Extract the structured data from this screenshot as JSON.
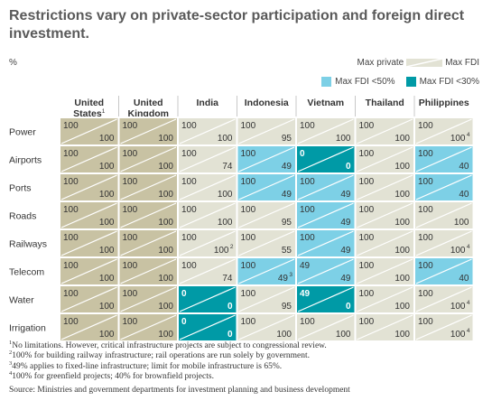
{
  "title": "Restrictions vary on private-sector participation and foreign direct investment.",
  "unit": "%",
  "legend": {
    "private_label": "Max private",
    "fdi_label": "Max FDI",
    "low_label": "Max FDI <50%",
    "very_low_label": "Max FDI <30%"
  },
  "colors": {
    "no_limit": "#c8c2a3",
    "default": "#e2e2d4",
    "fdi_lt_50": "#7dd0e6",
    "fdi_lt_30": "#009aa6",
    "grid": "#ffffff",
    "header_line": "#333333"
  },
  "chart_data": {
    "type": "table",
    "columns": [
      {
        "name_line1": "United",
        "name_line2": "States",
        "sup": "1"
      },
      {
        "name_line1": "United",
        "name_line2": "Kingdom",
        "sup": ""
      },
      {
        "name_line1": "India",
        "name_line2": "",
        "sup": ""
      },
      {
        "name_line1": "Indonesia",
        "name_line2": "",
        "sup": ""
      },
      {
        "name_line1": "Vietnam",
        "name_line2": "",
        "sup": ""
      },
      {
        "name_line1": "Thailand",
        "name_line2": "",
        "sup": ""
      },
      {
        "name_line1": "Philippines",
        "name_line2": "",
        "sup": ""
      }
    ],
    "rows": [
      {
        "sector": "Power",
        "cells": [
          {
            "p": 100,
            "f": 100,
            "c": "no_limit"
          },
          {
            "p": 100,
            "f": 100,
            "c": "no_limit"
          },
          {
            "p": 100,
            "f": 100,
            "c": "default"
          },
          {
            "p": 100,
            "f": 95,
            "c": "default"
          },
          {
            "p": 100,
            "f": 100,
            "c": "default"
          },
          {
            "p": 100,
            "f": 100,
            "c": "default"
          },
          {
            "p": 100,
            "f": 100,
            "c": "default",
            "sup": "4"
          }
        ]
      },
      {
        "sector": "Airports",
        "cells": [
          {
            "p": 100,
            "f": 100,
            "c": "no_limit"
          },
          {
            "p": 100,
            "f": 100,
            "c": "no_limit"
          },
          {
            "p": 100,
            "f": 74,
            "c": "default"
          },
          {
            "p": 100,
            "f": 49,
            "c": "fdi_lt_50"
          },
          {
            "p": 0,
            "f": 0,
            "c": "fdi_lt_30"
          },
          {
            "p": 100,
            "f": 100,
            "c": "default"
          },
          {
            "p": 100,
            "f": 40,
            "c": "fdi_lt_50"
          }
        ]
      },
      {
        "sector": "Ports",
        "cells": [
          {
            "p": 100,
            "f": 100,
            "c": "no_limit"
          },
          {
            "p": 100,
            "f": 100,
            "c": "no_limit"
          },
          {
            "p": 100,
            "f": 100,
            "c": "default"
          },
          {
            "p": 100,
            "f": 49,
            "c": "fdi_lt_50"
          },
          {
            "p": 100,
            "f": 49,
            "c": "fdi_lt_50"
          },
          {
            "p": 100,
            "f": 100,
            "c": "default"
          },
          {
            "p": 100,
            "f": 40,
            "c": "fdi_lt_50"
          }
        ]
      },
      {
        "sector": "Roads",
        "cells": [
          {
            "p": 100,
            "f": 100,
            "c": "no_limit"
          },
          {
            "p": 100,
            "f": 100,
            "c": "no_limit"
          },
          {
            "p": 100,
            "f": 100,
            "c": "default"
          },
          {
            "p": 100,
            "f": 95,
            "c": "default"
          },
          {
            "p": 100,
            "f": 49,
            "c": "fdi_lt_50"
          },
          {
            "p": 100,
            "f": 100,
            "c": "default"
          },
          {
            "p": 100,
            "f": 100,
            "c": "default"
          }
        ]
      },
      {
        "sector": "Railways",
        "cells": [
          {
            "p": 100,
            "f": 100,
            "c": "no_limit"
          },
          {
            "p": 100,
            "f": 100,
            "c": "no_limit"
          },
          {
            "p": 100,
            "f": 100,
            "c": "default",
            "sup": "2"
          },
          {
            "p": 100,
            "f": 55,
            "c": "default"
          },
          {
            "p": 100,
            "f": 49,
            "c": "fdi_lt_50"
          },
          {
            "p": 100,
            "f": 100,
            "c": "default"
          },
          {
            "p": 100,
            "f": 100,
            "c": "default",
            "sup": "4"
          }
        ]
      },
      {
        "sector": "Telecom",
        "cells": [
          {
            "p": 100,
            "f": 100,
            "c": "no_limit"
          },
          {
            "p": 100,
            "f": 100,
            "c": "no_limit"
          },
          {
            "p": 100,
            "f": 74,
            "c": "default"
          },
          {
            "p": 100,
            "f": 49,
            "c": "fdi_lt_50",
            "sup": "3"
          },
          {
            "p": 49,
            "f": 49,
            "c": "fdi_lt_50"
          },
          {
            "p": 100,
            "f": 100,
            "c": "default"
          },
          {
            "p": 100,
            "f": 40,
            "c": "fdi_lt_50"
          }
        ]
      },
      {
        "sector": "Water",
        "cells": [
          {
            "p": 100,
            "f": 100,
            "c": "no_limit"
          },
          {
            "p": 100,
            "f": 100,
            "c": "no_limit"
          },
          {
            "p": 0,
            "f": 0,
            "c": "fdi_lt_30"
          },
          {
            "p": 100,
            "f": 95,
            "c": "default"
          },
          {
            "p": 49,
            "f": 0,
            "c": "fdi_lt_30"
          },
          {
            "p": 100,
            "f": 100,
            "c": "default"
          },
          {
            "p": 100,
            "f": 100,
            "c": "default",
            "sup": "4"
          }
        ]
      },
      {
        "sector": "Irrigation",
        "cells": [
          {
            "p": 100,
            "f": 100,
            "c": "no_limit"
          },
          {
            "p": 100,
            "f": 100,
            "c": "no_limit"
          },
          {
            "p": 0,
            "f": 0,
            "c": "fdi_lt_30"
          },
          {
            "p": 100,
            "f": 100,
            "c": "default"
          },
          {
            "p": 100,
            "f": 100,
            "c": "default"
          },
          {
            "p": 100,
            "f": 100,
            "c": "default"
          },
          {
            "p": 100,
            "f": 100,
            "c": "default",
            "sup": "4"
          }
        ]
      }
    ]
  },
  "footnotes": [
    {
      "sup": "1",
      "text": "No limitations. However, critical infrastructure projects are subject to congressional review."
    },
    {
      "sup": "2",
      "text": "100% for building railway infrastructure; rail operations are run solely by government."
    },
    {
      "sup": "3",
      "text": "49% applies to fixed-line infrastructure; limit for mobile infrastructure is 65%."
    },
    {
      "sup": "4",
      "text": "100% for greenfield projects; 40% for brownfield projects."
    }
  ],
  "source": "Source: Ministries and government departments for investment planning and business development"
}
